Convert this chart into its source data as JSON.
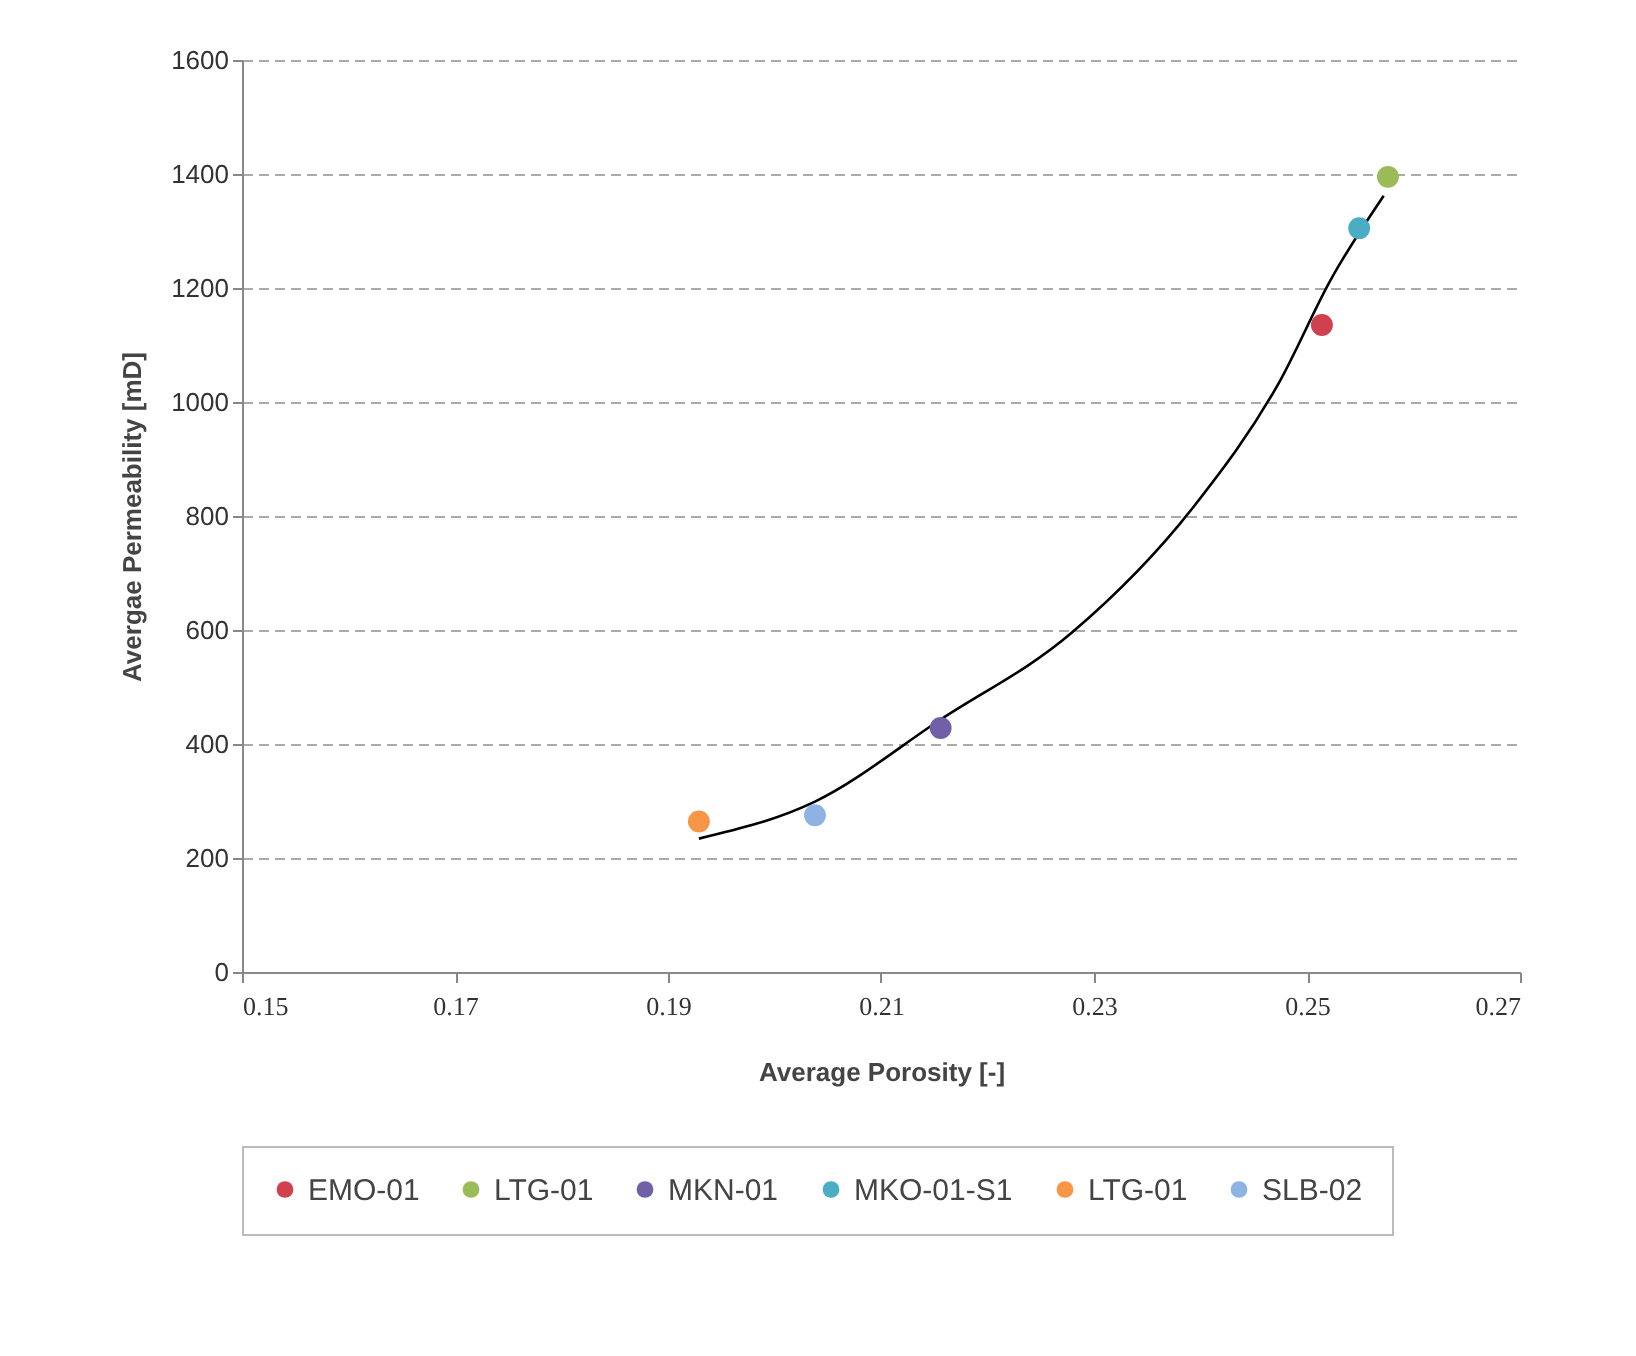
{
  "chart_data": {
    "type": "scatter",
    "xlabel": "Average Porosity [-]",
    "ylabel": "Avergae Permeability [mD]",
    "xlim": [
      0.15,
      0.27
    ],
    "xticks": [
      0.15,
      0.17,
      0.19,
      0.21,
      0.23,
      0.25,
      0.27
    ],
    "ylim": [
      0,
      1600
    ],
    "yticks": [
      0,
      200,
      400,
      600,
      800,
      1000,
      1200,
      1400,
      1600
    ],
    "grid": "y",
    "legend": "bottom",
    "series": [
      {
        "type": "line",
        "marker": "none",
        "color": "#000000",
        "x": [
          0.1929,
          0.2038,
          0.2156,
          0.2279,
          0.2393,
          0.2474,
          0.2523,
          0.2572
        ],
        "values": [
          234,
          299,
          443,
          595,
          815,
          1035,
          1217,
          1362
        ]
      },
      {
        "name": "EMO-01",
        "marker": "circle",
        "color": "#d0404f",
        "x": [
          0.2514
        ],
        "values": [
          1135
        ]
      },
      {
        "name": "LTG-01",
        "marker": "circle",
        "color": "#9bbb59",
        "x": [
          0.2576
        ],
        "values": [
          1395
        ]
      },
      {
        "name": "MKN-01",
        "marker": "circle",
        "color": "#7060a8",
        "x": [
          0.2156
        ],
        "values": [
          428
        ]
      },
      {
        "name": "MKO-01-S1",
        "marker": "circle",
        "color": "#4bacc6",
        "x": [
          0.2549
        ],
        "values": [
          1305
        ]
      },
      {
        "name": "LTG-01",
        "marker": "circle",
        "color": "#f79646",
        "x": [
          0.1929
        ],
        "values": [
          264
        ]
      },
      {
        "name": "SLB-02",
        "marker": "circle",
        "color": "#8db3e2",
        "x": [
          0.2038
        ],
        "values": [
          275
        ]
      }
    ]
  }
}
